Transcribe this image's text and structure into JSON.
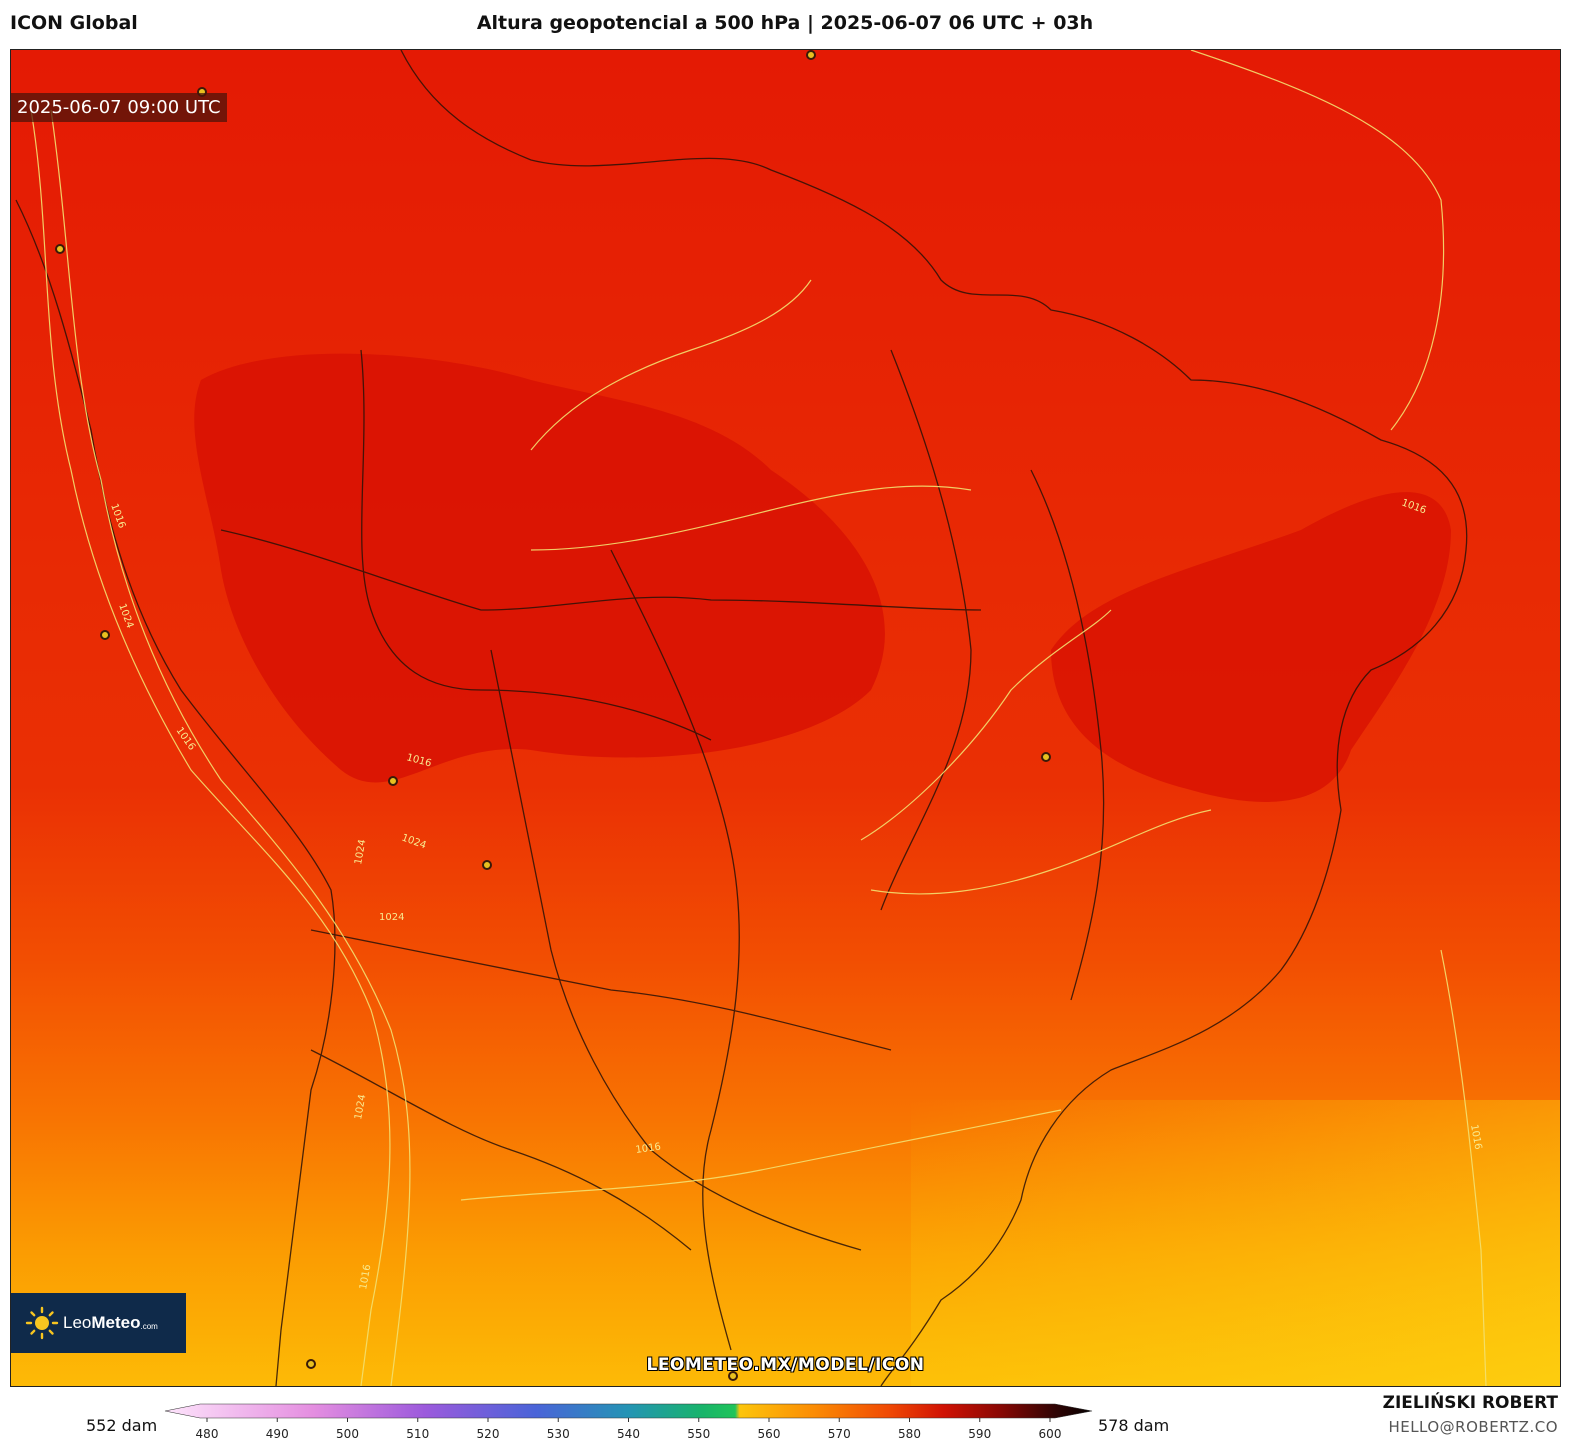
{
  "header": {
    "model": "ICON Global",
    "title": "Altura geopotencial a 500 hPa | 2025-06-07 06 UTC + 03h"
  },
  "map": {
    "valid_time": "2025-06-07 09:00 UTC",
    "watermark": "LEOMETEO.MX/MODEL/ICON",
    "isobar_labels": [
      "1016",
      "1024",
      "1016",
      "1024",
      "1024",
      "1024",
      "1016",
      "1016",
      "1016",
      "1024",
      "1016",
      "1016"
    ]
  },
  "logo": {
    "name_regular": "Leo",
    "name_bold": "Meteo",
    "suffix": ".com"
  },
  "colorbar": {
    "min_label": "552 dam",
    "max_label": "578 dam",
    "ticks": [
      "480",
      "490",
      "500",
      "510",
      "520",
      "530",
      "540",
      "550",
      "560",
      "570",
      "580",
      "590",
      "600"
    ]
  },
  "credits": {
    "author": "ZIELIŃSKI ROBERT",
    "email": "HELLO@ROBERTZ.CO"
  }
}
